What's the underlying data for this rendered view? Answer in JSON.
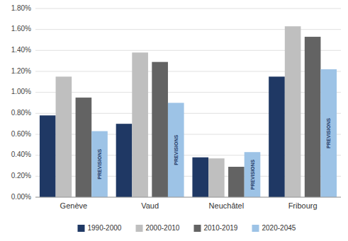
{
  "chart_data": {
    "type": "bar",
    "categories": [
      "Genève",
      "Vaud",
      "Neuchâtel",
      "Fribourg"
    ],
    "series": [
      {
        "name": "1990-2000",
        "color": "#1F3864",
        "values": [
          0.0078,
          0.007,
          0.0038,
          0.0115
        ]
      },
      {
        "name": "2000-2010",
        "color": "#BFBFBF",
        "values": [
          0.0115,
          0.0138,
          0.0037,
          0.0163
        ]
      },
      {
        "name": "2010-2019",
        "color": "#636363",
        "values": [
          0.0095,
          0.0129,
          0.0029,
          0.0153
        ]
      },
      {
        "name": "2020-2045",
        "color": "#9DC3E6",
        "values": [
          0.0063,
          0.009,
          0.0043,
          0.0122
        ]
      }
    ],
    "annotations": [
      {
        "text": "PREVISIONS",
        "series": "2020-2045",
        "category": "Genève",
        "color": "#1F3864"
      },
      {
        "text": "PREVISIONS",
        "series": "2020-2045",
        "category": "Vaud",
        "color": "#1F3864"
      },
      {
        "text": "PREVISIONS",
        "series": "2020-2045",
        "category": "Neuchâtel",
        "color": "#1F3864"
      },
      {
        "text": "PREVISIONS",
        "series": "2020-2045",
        "category": "Fribourg",
        "color": "#1F3864"
      }
    ],
    "ylim": [
      0,
      0.018
    ],
    "yticks": [
      {
        "value": 0.0,
        "label": "0.00%"
      },
      {
        "value": 0.002,
        "label": "0.20%"
      },
      {
        "value": 0.004,
        "label": "0.40%"
      },
      {
        "value": 0.006,
        "label": "0.60%"
      },
      {
        "value": 0.008,
        "label": "0.80%"
      },
      {
        "value": 0.01,
        "label": "1.00%"
      },
      {
        "value": 0.012,
        "label": "1.20%"
      },
      {
        "value": 0.014,
        "label": "1.40%"
      },
      {
        "value": 0.016,
        "label": "1.60%"
      },
      {
        "value": 0.018,
        "label": "1.80%"
      }
    ],
    "grid": true,
    "legend": "bottom"
  }
}
